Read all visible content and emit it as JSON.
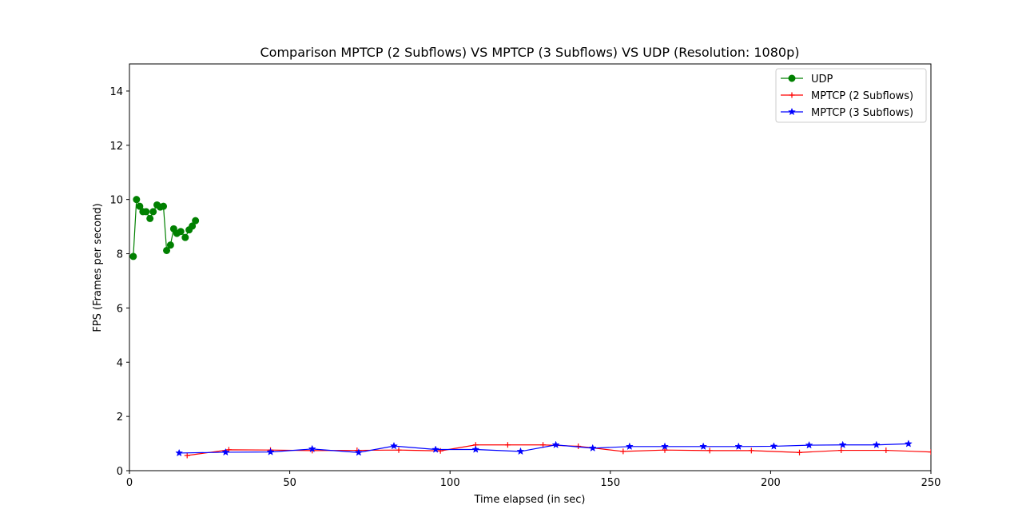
{
  "chart_data": {
    "type": "line",
    "title": "Comparison MPTCP (2 Subflows) VS MPTCP (3 Subflows) VS UDP (Resolution: 1080p)",
    "xlabel": "Time elapsed (in sec)",
    "ylabel": "FPS (Frames per second)",
    "xlim": [
      0,
      250
    ],
    "ylim": [
      0,
      15
    ],
    "xticks": [
      0,
      50,
      100,
      150,
      200,
      250
    ],
    "yticks": [
      0,
      2,
      4,
      6,
      8,
      10,
      12,
      14
    ],
    "grid": false,
    "legend_position": "upper right",
    "series": [
      {
        "name": "UDP",
        "color": "#008000",
        "marker": "circle",
        "x": [
          1.2,
          2.2,
          3.2,
          4.2,
          5.2,
          6.4,
          7.4,
          8.6,
          9.6,
          10.6,
          11.6,
          12.8,
          13.8,
          14.8,
          16.0,
          17.4,
          18.6,
          19.6,
          20.6
        ],
        "y": [
          7.9,
          10.0,
          9.75,
          9.55,
          9.55,
          9.3,
          9.55,
          9.8,
          9.72,
          9.75,
          8.12,
          8.32,
          8.92,
          8.75,
          8.82,
          8.6,
          8.88,
          9.02,
          9.22
        ]
      },
      {
        "name": "MPTCP (2 Subflows)",
        "color": "#ff0000",
        "marker": "plus",
        "x": [
          18,
          31,
          44,
          57,
          71,
          84,
          97,
          108,
          118,
          129,
          140,
          154,
          167,
          181,
          194,
          209,
          222,
          236,
          250
        ],
        "y": [
          0.56,
          0.77,
          0.76,
          0.74,
          0.75,
          0.76,
          0.73,
          0.95,
          0.95,
          0.95,
          0.9,
          0.71,
          0.76,
          0.74,
          0.74,
          0.67,
          0.75,
          0.75,
          0.69
        ]
      },
      {
        "name": "MPTCP (3 Subflows)",
        "color": "#0000ff",
        "marker": "star",
        "x": [
          15.5,
          30,
          44,
          57,
          71.5,
          82.5,
          95.5,
          108,
          122,
          133,
          144.5,
          156,
          167,
          179,
          190,
          201,
          212,
          222.5,
          233,
          243
        ],
        "y": [
          0.65,
          0.68,
          0.69,
          0.8,
          0.67,
          0.91,
          0.78,
          0.78,
          0.71,
          0.95,
          0.83,
          0.89,
          0.89,
          0.89,
          0.89,
          0.9,
          0.94,
          0.95,
          0.95,
          0.99
        ]
      }
    ]
  }
}
